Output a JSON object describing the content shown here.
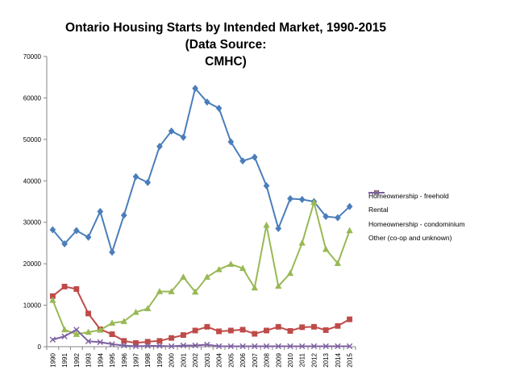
{
  "chart_data": {
    "type": "line",
    "title_line1": "Ontario Housing Starts by Intended Market, 1990-2015 (Data Source:",
    "title_line2": "CMHC)",
    "xlabel": "",
    "ylabel": "",
    "ylim": [
      0,
      70000
    ],
    "yticks": [
      "0",
      "10000",
      "20000",
      "30000",
      "40000",
      "50000",
      "60000",
      "70000"
    ],
    "categories": [
      "1990",
      "1991",
      "1992",
      "1993",
      "1994",
      "1995",
      "1996",
      "1997",
      "1998",
      "1999",
      "2000",
      "2001",
      "2002",
      "2003",
      "2004",
      "2005",
      "2006",
      "2007",
      "2008",
      "2009",
      "2010",
      "2011",
      "2012",
      "2013",
      "2014",
      "2015"
    ],
    "legend_position": "right",
    "series": [
      {
        "name": "Homeownership - freehold",
        "color": "#4a7ebb",
        "marker": "diamond",
        "values": [
          28200,
          24800,
          28000,
          26400,
          32600,
          22800,
          31700,
          41000,
          39600,
          48300,
          52000,
          50500,
          62300,
          59000,
          57500,
          49400,
          44800,
          45700,
          38800,
          28500,
          35700,
          35500,
          35000,
          31400,
          31100,
          33800
        ]
      },
      {
        "name": "Rental",
        "color": "#be4b48",
        "marker": "square",
        "values": [
          12200,
          14500,
          13900,
          8000,
          4200,
          3000,
          1400,
          900,
          1200,
          1400,
          2100,
          2800,
          3900,
          4800,
          3700,
          3900,
          4100,
          3100,
          3900,
          4800,
          3800,
          4700,
          4800,
          4000,
          5000,
          6600
        ]
      },
      {
        "name": "Homeownership - condominium",
        "color": "#98b954",
        "marker": "triangle",
        "values": [
          11200,
          4100,
          3000,
          3500,
          4000,
          5700,
          6100,
          8300,
          9200,
          13300,
          13300,
          16800,
          13200,
          16800,
          18600,
          19900,
          18900,
          14200,
          29300,
          14600,
          17700,
          25000,
          34800,
          23500,
          20100,
          28000
        ]
      },
      {
        "name": "Other (co-op and unknown)",
        "color": "#7d60a0",
        "marker": "x",
        "values": [
          1700,
          2500,
          4100,
          1300,
          1100,
          600,
          300,
          100,
          200,
          200,
          100,
          300,
          300,
          500,
          100,
          100,
          100,
          100,
          100,
          100,
          100,
          100,
          100,
          100,
          100,
          100
        ]
      }
    ]
  }
}
